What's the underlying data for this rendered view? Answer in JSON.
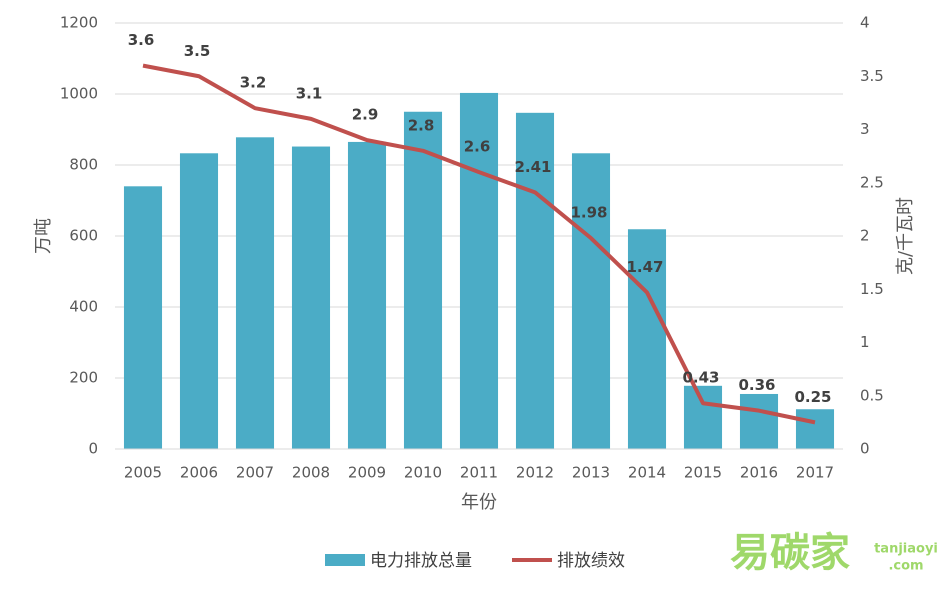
{
  "chart_data": {
    "type": "bar",
    "x_label": "年份",
    "y_label": "万吨",
    "y2_label": "克/千瓦时",
    "categories": [
      "2005",
      "2006",
      "2007",
      "2008",
      "2009",
      "2010",
      "2011",
      "2012",
      "2013",
      "2014",
      "2015",
      "2016",
      "2017"
    ],
    "series": [
      {
        "name": "电力排放总量",
        "type": "bar",
        "color": "#4bacc6",
        "values": [
          740,
          833,
          878,
          852,
          865,
          950,
          1003,
          947,
          833,
          619,
          178,
          155,
          112
        ]
      },
      {
        "name": "排放绩效",
        "type": "line",
        "color": "#c0504d",
        "axis": "y2",
        "values": [
          3.6,
          3.5,
          3.2,
          3.1,
          2.9,
          2.8,
          2.6,
          2.41,
          1.98,
          1.47,
          0.43,
          0.36,
          0.25
        ]
      }
    ],
    "ylim": [
      0,
      1200
    ],
    "yticks": [
      0,
      200,
      400,
      600,
      800,
      1000,
      1200
    ],
    "y2lim": [
      0,
      4
    ],
    "y2ticks": [
      0,
      0.5,
      1,
      1.5,
      2,
      2.5,
      3,
      3.5,
      4
    ],
    "grid": true,
    "legend": "bottom"
  },
  "watermark": {
    "brand": "易碳家",
    "domain": "tanjiaoyi",
    "tld": ".com"
  }
}
